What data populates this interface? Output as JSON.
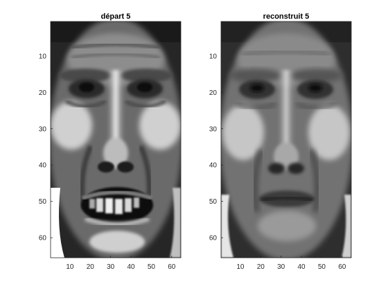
{
  "chart_data": [
    {
      "type": "heatmap",
      "title": "départ 5",
      "xticks": [
        "10",
        "20",
        "30",
        "40",
        "50",
        "60"
      ],
      "yticks": [
        "10",
        "20",
        "30",
        "40",
        "50",
        "60"
      ],
      "xlim": [
        0.5,
        64.5
      ],
      "ylim": [
        0.5,
        65.5
      ],
      "y_direction": "reverse",
      "colormap": "gray",
      "image_size": [
        65,
        64
      ],
      "content": "grayscale face image, mouth open with teeth visible"
    },
    {
      "type": "heatmap",
      "title": "reconstruit 5",
      "xticks": [
        "10",
        "20",
        "30",
        "40",
        "50",
        "60"
      ],
      "yticks": [
        "10",
        "20",
        "30",
        "40",
        "50",
        "60"
      ],
      "xlim": [
        0.5,
        64.5
      ],
      "ylim": [
        0.5,
        65.5
      ],
      "y_direction": "reverse",
      "colormap": "gray",
      "image_size": [
        65,
        64
      ],
      "content": "grayscale reconstructed face image, smoother, mouth closed"
    }
  ]
}
